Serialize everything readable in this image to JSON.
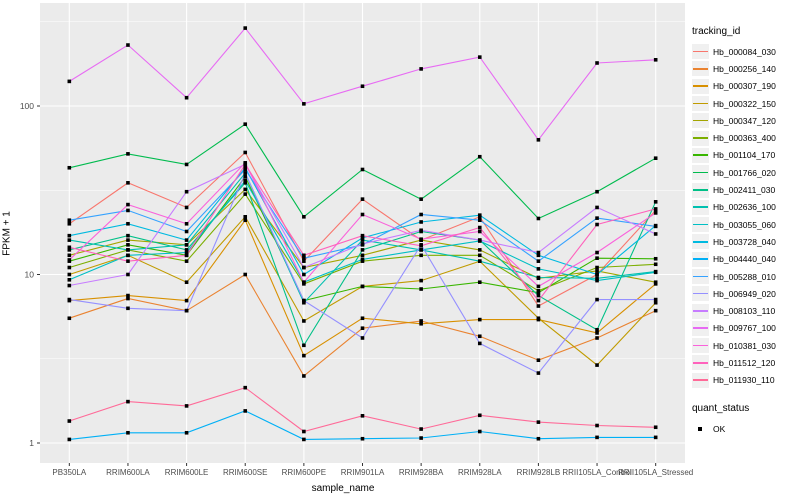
{
  "axes": {
    "x_title": "sample_name",
    "y_title": "FPKM + 1",
    "tick_color": "#4d4d4d"
  },
  "legend": {
    "tracking_title": "tracking_id",
    "quant_title": "quant_status",
    "quant_items": [
      {
        "label": "OK",
        "shape": "square",
        "color": "#000000"
      }
    ]
  },
  "colors": {
    "panel_bg": "#ebebeb",
    "grid_major": "#ffffff",
    "grid_minor": "#f7f7f7",
    "point": "#000000",
    "outer_bg": "#ffffff"
  },
  "chart_data": {
    "type": "line",
    "title": "",
    "xlabel": "sample_name",
    "ylabel": "FPKM + 1",
    "y_scale": "log10",
    "ylim": [
      0.76,
      330
    ],
    "y_ticks": [
      1,
      10,
      100
    ],
    "y_minor_ticks": [
      3.162,
      31.62,
      316.2
    ],
    "grid": true,
    "legend_position": "right",
    "point_marker": {
      "shape": "square",
      "color": "#000000",
      "label": "OK"
    },
    "categories": [
      "PB350LA",
      "RRIM600LA",
      "RRIM600LE",
      "RRIM600SE",
      "RRIM600PE",
      "RRIM901LA",
      "RRIM928BA",
      "RRIM928LA",
      "RRIM928LB",
      "RRII105LA_Control",
      "RRII105LA_Stressed"
    ],
    "series": [
      {
        "name": "Hb_000084_030",
        "color": "#F8766D",
        "values": [
          20,
          35,
          25,
          53,
          12,
          28,
          16,
          22,
          6.5,
          10,
          24
        ]
      },
      {
        "name": "Hb_000256_140",
        "color": "#EA8331",
        "values": [
          5.5,
          7.2,
          6.1,
          10,
          2.5,
          4.8,
          5.3,
          4.3,
          3.1,
          4.2,
          6.1
        ]
      },
      {
        "name": "Hb_000307_190",
        "color": "#D89000",
        "values": [
          7,
          7.5,
          7,
          21,
          3.3,
          5.5,
          5.1,
          5.4,
          5.4,
          4.5,
          8.8
        ]
      },
      {
        "name": "Hb_000322_150",
        "color": "#C09B00",
        "values": [
          10,
          13,
          9,
          22,
          5.3,
          8.5,
          9.2,
          12,
          5.5,
          2.9,
          6.8
        ]
      },
      {
        "name": "Hb_000347_120",
        "color": "#A3A500",
        "values": [
          13,
          16,
          15,
          32,
          11,
          13,
          16,
          14,
          9.5,
          10.5,
          9
        ]
      },
      {
        "name": "Hb_000363_400",
        "color": "#7CAE00",
        "values": [
          11,
          14,
          12,
          30,
          8.8,
          12,
          13,
          13,
          8,
          11,
          11.5
        ]
      },
      {
        "name": "Hb_001104_170",
        "color": "#39B600",
        "values": [
          12,
          15,
          13,
          38,
          7,
          8.5,
          8.2,
          9,
          7.8,
          12.5,
          12.4
        ]
      },
      {
        "name": "Hb_001766_020",
        "color": "#00BB4E",
        "values": [
          43,
          52,
          45,
          78,
          22,
          42,
          28,
          50,
          21.5,
          31,
          49
        ]
      },
      {
        "name": "Hb_002411_030",
        "color": "#00C087",
        "values": [
          14,
          17,
          14,
          35,
          3.8,
          14,
          18,
          16,
          7.5,
          4.7,
          27
        ]
      },
      {
        "name": "Hb_002636_100",
        "color": "#00C0AF",
        "values": [
          16,
          14,
          15,
          40,
          6.8,
          16,
          14,
          12,
          9.6,
          9.5,
          10.4
        ]
      },
      {
        "name": "Hb_003055_060",
        "color": "#00BFC4",
        "values": [
          9.3,
          13,
          13.5,
          36,
          9,
          12.3,
          14,
          15.8,
          10.8,
          9.2,
          10.3
        ]
      },
      {
        "name": "Hb_003728_040",
        "color": "#00BAE0",
        "values": [
          17,
          20,
          16,
          43,
          10,
          16.5,
          20.5,
          22.5,
          13,
          10,
          19.5
        ]
      },
      {
        "name": "Hb_004440_040",
        "color": "#00B0F6",
        "values": [
          1.05,
          1.15,
          1.15,
          1.55,
          1.05,
          1.06,
          1.07,
          1.17,
          1.06,
          1.08,
          1.08
        ]
      },
      {
        "name": "Hb_005288_010",
        "color": "#35A2FF",
        "values": [
          21,
          24,
          18,
          42,
          12.5,
          15,
          22.7,
          21,
          12,
          21.6,
          19.3
        ]
      },
      {
        "name": "Hb_006949_020",
        "color": "#9590FF",
        "values": [
          7.1,
          6.3,
          6.1,
          40,
          7,
          4.2,
          15,
          3.9,
          2.6,
          7.1,
          7.1
        ]
      },
      {
        "name": "Hb_008103_110",
        "color": "#C77CFF",
        "values": [
          8.6,
          10,
          31,
          45,
          11,
          15.2,
          18.3,
          16,
          13.5,
          25,
          17.4
        ]
      },
      {
        "name": "Hb_009767_100",
        "color": "#E76BF3",
        "values": [
          140,
          230,
          112,
          290,
          103,
          131,
          166,
          195,
          63,
          180,
          188
        ]
      },
      {
        "name": "Hb_010381_030",
        "color": "#FA62DB",
        "values": [
          12.2,
          26,
          20,
          46,
          9,
          22.7,
          16.2,
          18,
          8.5,
          13.5,
          23.2
        ]
      },
      {
        "name": "Hb_011512_120",
        "color": "#FF62BC",
        "values": [
          14.5,
          12,
          13,
          45,
          13,
          17,
          14.8,
          19,
          7,
          19.8,
          24.5
        ]
      },
      {
        "name": "Hb_011930_110",
        "color": "#FF6A98",
        "values": [
          1.35,
          1.76,
          1.66,
          2.13,
          1.17,
          1.45,
          1.21,
          1.46,
          1.33,
          1.27,
          1.24
        ]
      }
    ]
  }
}
